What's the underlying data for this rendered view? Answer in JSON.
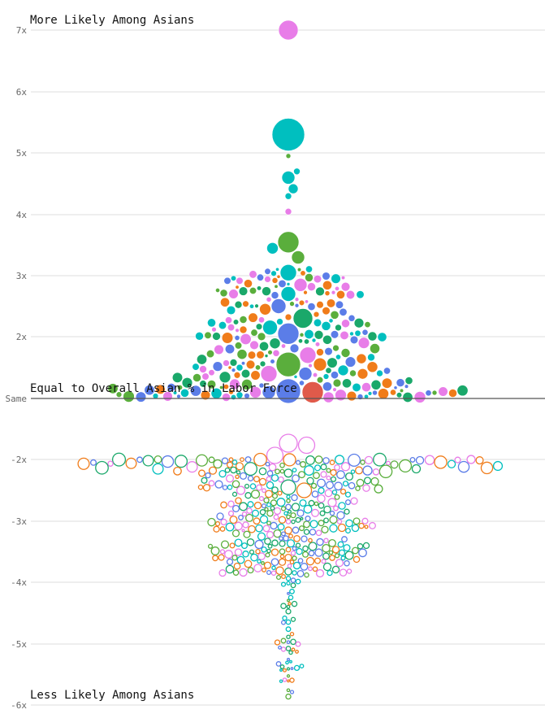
{
  "chart_data": {
    "type": "scatter",
    "subtype": "beeswarm",
    "title": "",
    "xlabel": "",
    "ylabel": "",
    "y_ticks": [
      {
        "value": 7,
        "label": "7x"
      },
      {
        "value": 6,
        "label": "6x"
      },
      {
        "value": 5,
        "label": "5x"
      },
      {
        "value": 4,
        "label": "4x"
      },
      {
        "value": 3,
        "label": "3x"
      },
      {
        "value": 2,
        "label": "2x"
      },
      {
        "value": 1,
        "label": "Same"
      },
      {
        "value": -2,
        "label": "-2x"
      },
      {
        "value": -3,
        "label": "-3x"
      },
      {
        "value": -4,
        "label": "-4x"
      },
      {
        "value": -5,
        "label": "-5x"
      },
      {
        "value": -6,
        "label": "-6x"
      }
    ],
    "ylim": [
      -6,
      7
    ],
    "grid": true,
    "annotations": {
      "top": "More Likely Among Asians",
      "baseline": "Equal to Overall Asian % in Labor Force",
      "bottom": "Less Likely Among Asians"
    },
    "palette": [
      "#00bfbf",
      "#e87de8",
      "#5aae3c",
      "#5b7de8",
      "#f07c1a",
      "#1aa86a"
    ],
    "highlighted_points": [
      {
        "y": 7.0,
        "r": 12,
        "color": "#e87de8",
        "fill": "solid"
      },
      {
        "y": 5.3,
        "r": 20,
        "color": "#00bfbf",
        "fill": "solid"
      },
      {
        "y": 4.95,
        "r": 3,
        "color": "#5aae3c",
        "fill": "solid"
      },
      {
        "y": 4.7,
        "r": 4,
        "color": "#00bfbf",
        "fill": "solid"
      },
      {
        "y": 4.6,
        "r": 8,
        "color": "#00bfbf",
        "fill": "solid"
      },
      {
        "y": 4.42,
        "r": 6,
        "color": "#00bfbf",
        "fill": "solid"
      },
      {
        "y": 4.3,
        "r": 4,
        "color": "#00bfbf",
        "fill": "solid"
      },
      {
        "y": 4.05,
        "r": 4,
        "color": "#e87de8",
        "fill": "solid"
      },
      {
        "y": 3.55,
        "r": 13,
        "color": "#5aae3c",
        "fill": "solid"
      },
      {
        "y": 3.45,
        "r": 7,
        "color": "#00bfbf",
        "fill": "solid"
      },
      {
        "y": 3.3,
        "r": 8,
        "color": "#5aae3c",
        "fill": "solid"
      },
      {
        "y": 3.05,
        "r": 10,
        "color": "#00bfbf",
        "fill": "solid"
      },
      {
        "y": 2.85,
        "r": 8,
        "color": "#e87de8",
        "fill": "solid"
      },
      {
        "y": 2.7,
        "r": 9,
        "color": "#00bfbf",
        "fill": "solid"
      },
      {
        "y": 2.5,
        "r": 9,
        "color": "#5b7de8",
        "fill": "solid"
      },
      {
        "y": 2.45,
        "r": 7,
        "color": "#f07c1a",
        "fill": "solid"
      },
      {
        "y": 2.3,
        "r": 12,
        "color": "#1aa86a",
        "fill": "solid"
      },
      {
        "y": 2.15,
        "r": 9,
        "color": "#00bfbf",
        "fill": "solid"
      },
      {
        "y": 2.05,
        "r": 13,
        "color": "#5b7de8",
        "fill": "solid"
      },
      {
        "y": 1.7,
        "r": 10,
        "color": "#e87de8",
        "fill": "solid"
      },
      {
        "y": 1.55,
        "r": 15,
        "color": "#5aae3c",
        "fill": "solid"
      },
      {
        "y": 1.55,
        "r": 8,
        "color": "#f07c1a",
        "fill": "solid"
      },
      {
        "y": 1.4,
        "r": 10,
        "color": "#e87de8",
        "fill": "solid"
      },
      {
        "y": 1.4,
        "r": 8,
        "color": "#5b7de8",
        "fill": "solid"
      },
      {
        "y": 1.12,
        "r": 15,
        "color": "#5b7de8",
        "fill": "solid"
      },
      {
        "y": 1.1,
        "r": 13,
        "color": "#e05a4a",
        "fill": "solid"
      },
      {
        "y": 1.1,
        "r": 8,
        "color": "#5b7de8",
        "fill": "solid"
      },
      {
        "y": 1.1,
        "r": 7,
        "color": "#e87de8",
        "fill": "solid"
      },
      {
        "y": -1.2,
        "r": 11,
        "color": "#e87de8",
        "fill": "hollow"
      },
      {
        "y": -1.3,
        "r": 10,
        "color": "#e87de8",
        "fill": "hollow"
      },
      {
        "y": -1.8,
        "r": 10,
        "color": "#e87de8",
        "fill": "hollow"
      },
      {
        "y": -2.45,
        "r": 9,
        "color": "#1aa86a",
        "fill": "hollow"
      },
      {
        "y": -2.5,
        "r": 9,
        "color": "#f07c1a",
        "fill": "hollow"
      }
    ],
    "note": "Beeswarm of roughly 650 occupations; filled circles above the baseline, hollow circles below. Point values beyond the highlighted ones are approximate."
  }
}
